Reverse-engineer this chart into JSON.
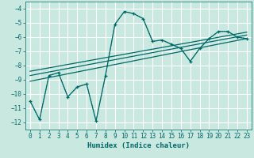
{
  "xlabel": "Humidex (Indice chaleur)",
  "bg_color": "#c8e8e0",
  "grid_color": "#ffffff",
  "line_color": "#006868",
  "xlim": [
    -0.5,
    23.5
  ],
  "ylim": [
    -12.5,
    -3.5
  ],
  "yticks": [
    -12,
    -11,
    -10,
    -9,
    -8,
    -7,
    -6,
    -5,
    -4
  ],
  "xticks": [
    0,
    1,
    2,
    3,
    4,
    5,
    6,
    7,
    8,
    9,
    10,
    11,
    12,
    13,
    14,
    15,
    16,
    17,
    18,
    19,
    20,
    21,
    22,
    23
  ],
  "series1_x": [
    0,
    1,
    2,
    3,
    4,
    5,
    6,
    7,
    8,
    9,
    10,
    11,
    12,
    13,
    14,
    15,
    16,
    17,
    18,
    19,
    20,
    21,
    22,
    23
  ],
  "series1_y": [
    -10.5,
    -11.8,
    -8.7,
    -8.5,
    -10.2,
    -9.5,
    -9.3,
    -11.9,
    -8.7,
    -5.1,
    -4.2,
    -4.35,
    -4.7,
    -6.3,
    -6.2,
    -6.5,
    -6.8,
    -7.7,
    -6.8,
    -6.1,
    -5.6,
    -5.6,
    -6.0,
    -6.1
  ],
  "trend1_x": [
    0,
    23
  ],
  "trend1_y": [
    -9.1,
    -6.1
  ],
  "trend2_x": [
    0,
    23
  ],
  "trend2_y": [
    -8.7,
    -5.85
  ],
  "trend3_x": [
    0,
    23
  ],
  "trend3_y": [
    -8.4,
    -5.65
  ],
  "dotted_y": [
    -10.5,
    -11.8,
    -8.7,
    -8.5,
    -10.2,
    -9.5,
    -9.3,
    -11.9,
    -8.7,
    -5.1,
    -4.2,
    -4.35,
    -4.7,
    -6.3,
    -6.2,
    -6.5,
    -6.8,
    -7.7,
    -6.8,
    -6.1,
    -5.6,
    -5.6,
    -6.0,
    -6.1
  ]
}
